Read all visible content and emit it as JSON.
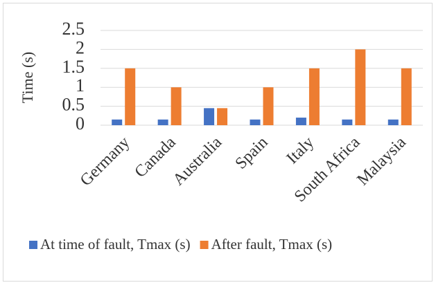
{
  "chart_data": {
    "type": "bar",
    "y_label": "Time (s)",
    "categories": [
      "Germany",
      "Canada",
      "Australia",
      "Spain",
      "Italy",
      "South Africa",
      "Malaysia"
    ],
    "series": [
      {
        "name": "At time of fault, Tmax (s)",
        "color": "#4472c4",
        "values": [
          0.15,
          0.15,
          0.45,
          0.15,
          0.2,
          0.15,
          0.15
        ]
      },
      {
        "name": "After fault, Tmax (s)",
        "color": "#ed7d31",
        "values": [
          1.5,
          1,
          0.45,
          1,
          1.5,
          2,
          1.5
        ]
      }
    ],
    "ylim": [
      0,
      2.5
    ],
    "yticks": [
      0,
      0.5,
      1,
      1.5,
      2,
      2.5
    ],
    "grid": true
  }
}
